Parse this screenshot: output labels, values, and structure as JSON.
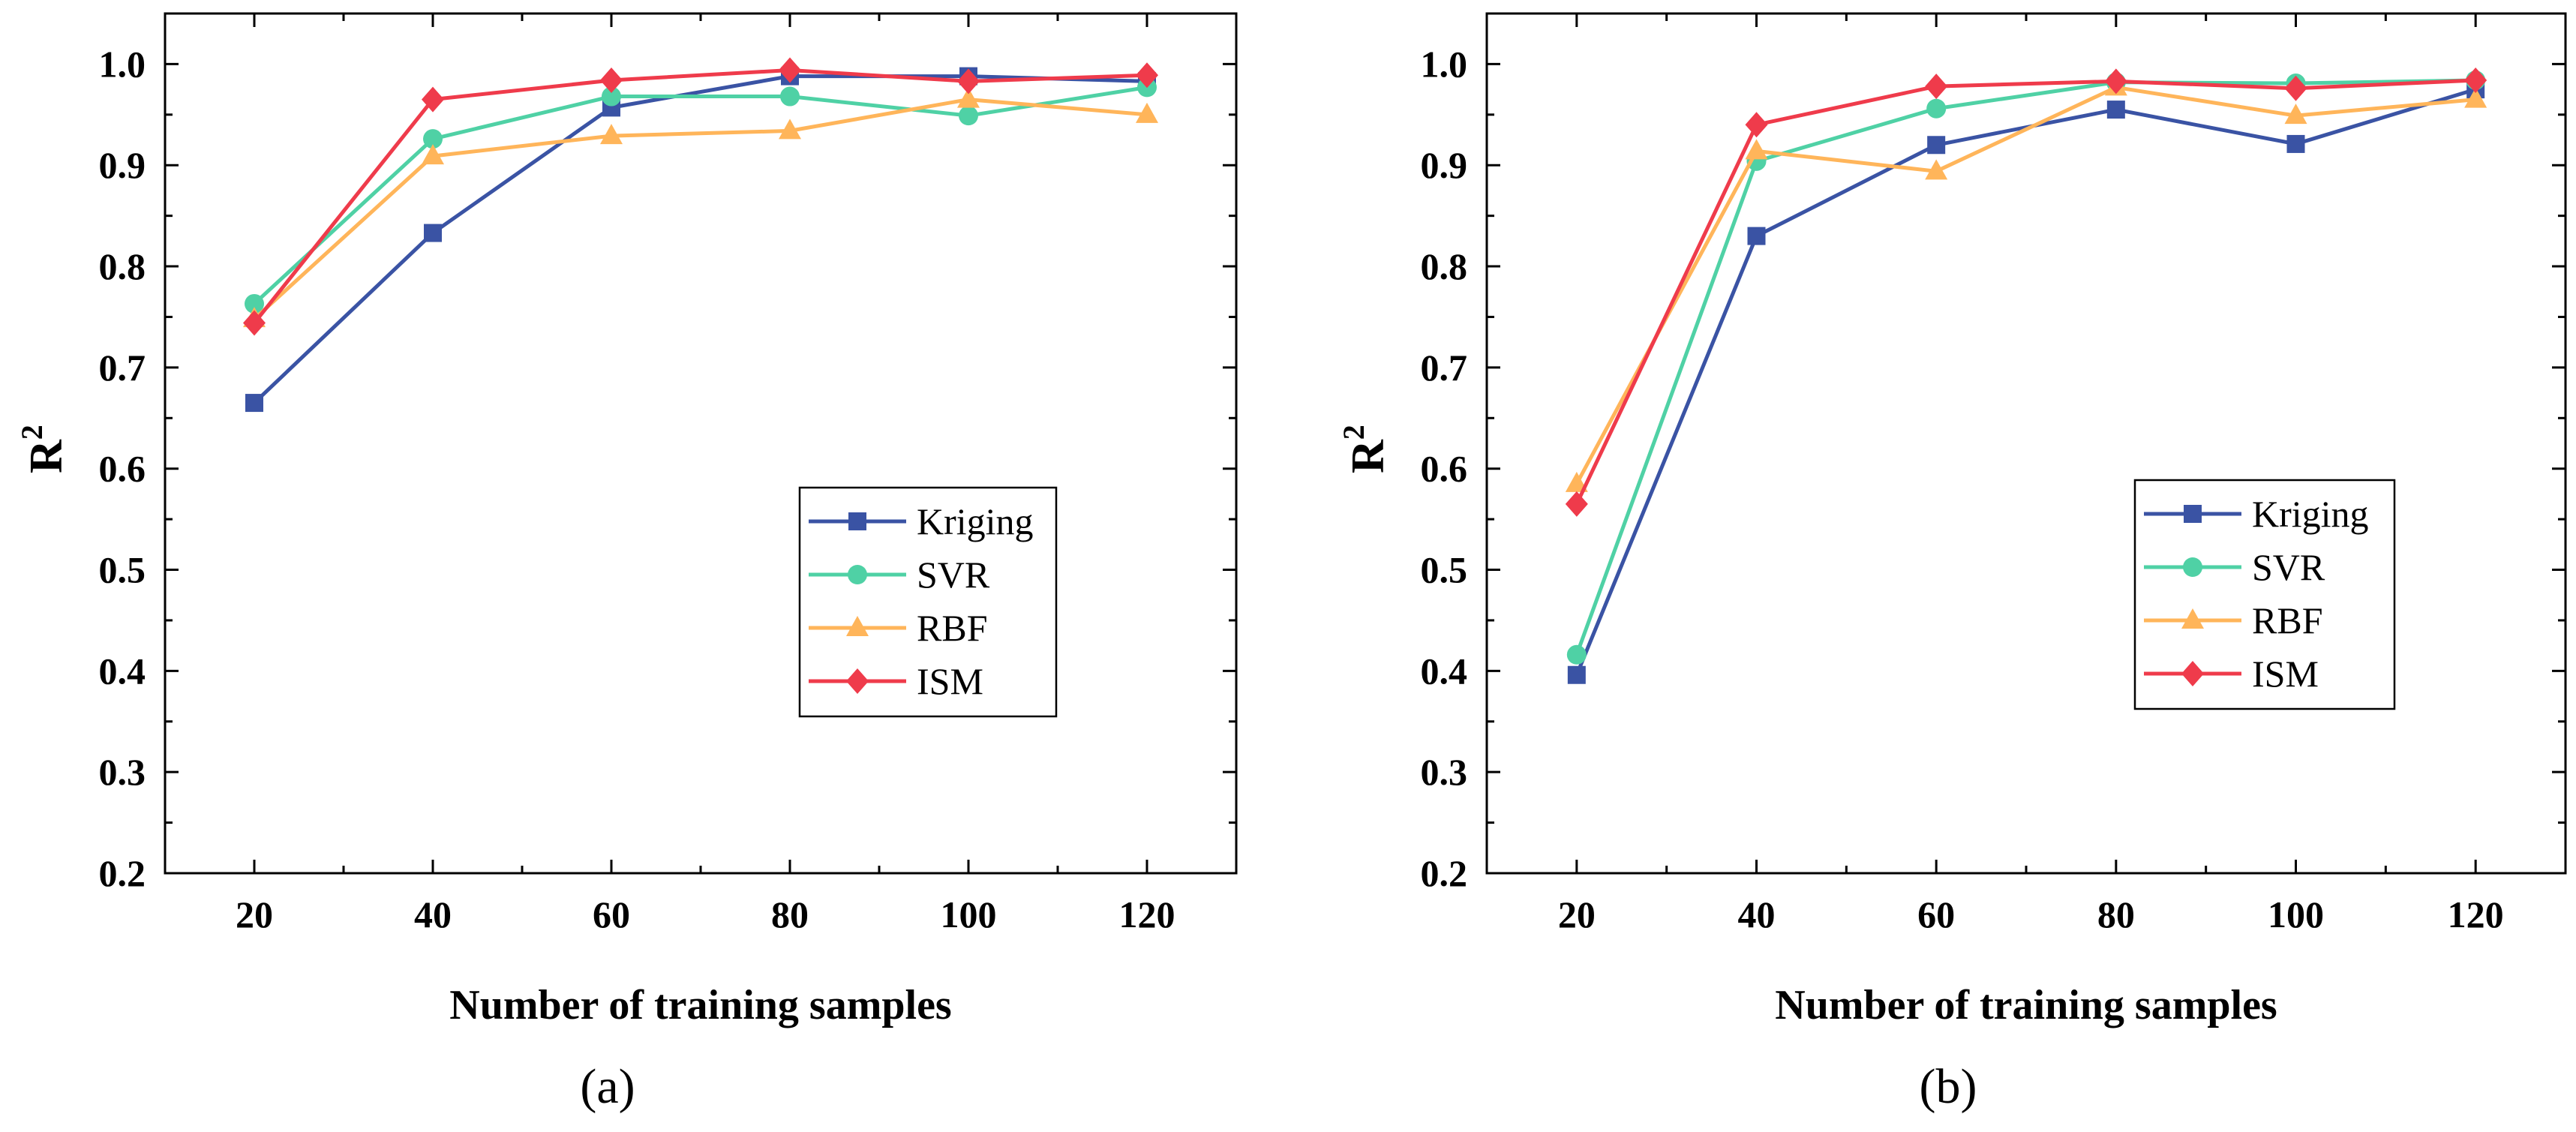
{
  "chart_data": [
    {
      "type": "line",
      "panel_label": "(a)",
      "xlabel": "Number of training samples",
      "ylabel": "R",
      "ylabel_superscript": "2",
      "x": [
        20,
        40,
        60,
        80,
        100,
        120
      ],
      "x_ticks": [
        "20",
        "40",
        "60",
        "80",
        "100",
        "120"
      ],
      "xlim": [
        10,
        130
      ],
      "ylim": [
        0.2,
        1.05
      ],
      "y_ticks": [
        "0.2",
        "0.3",
        "0.4",
        "0.5",
        "0.6",
        "0.7",
        "0.8",
        "0.9",
        "1.0"
      ],
      "grid": false,
      "legend_position": "bottom-right",
      "series": [
        {
          "name": "Kriging",
          "marker": "square",
          "color": "#3a53a4",
          "values": [
            0.665,
            0.833,
            0.957,
            0.988,
            0.988,
            0.983
          ]
        },
        {
          "name": "SVR",
          "marker": "circle",
          "color": "#4fd1a5",
          "values": [
            0.763,
            0.926,
            0.968,
            0.968,
            0.949,
            0.977
          ]
        },
        {
          "name": "RBF",
          "marker": "triangle",
          "color": "#ffb55a",
          "values": [
            0.748,
            0.909,
            0.929,
            0.934,
            0.965,
            0.95
          ]
        },
        {
          "name": "ISM",
          "marker": "diamond",
          "color": "#ef3b4b",
          "values": [
            0.744,
            0.965,
            0.984,
            0.994,
            0.983,
            0.989
          ]
        }
      ]
    },
    {
      "type": "line",
      "panel_label": "(b)",
      "xlabel": "Number of training samples",
      "ylabel": "R",
      "ylabel_superscript": "2",
      "x": [
        20,
        40,
        60,
        80,
        100,
        120
      ],
      "x_ticks": [
        "20",
        "40",
        "60",
        "80",
        "100",
        "120"
      ],
      "xlim": [
        10,
        130
      ],
      "ylim": [
        0.2,
        1.05
      ],
      "y_ticks": [
        "0.2",
        "0.3",
        "0.4",
        "0.5",
        "0.6",
        "0.7",
        "0.8",
        "0.9",
        "1.0"
      ],
      "grid": false,
      "legend_position": "bottom-right",
      "series": [
        {
          "name": "Kriging",
          "marker": "square",
          "color": "#3a53a4",
          "values": [
            0.396,
            0.83,
            0.92,
            0.955,
            0.921,
            0.975
          ]
        },
        {
          "name": "SVR",
          "marker": "circle",
          "color": "#4fd1a5",
          "values": [
            0.416,
            0.904,
            0.956,
            0.982,
            0.981,
            0.984
          ]
        },
        {
          "name": "RBF",
          "marker": "triangle",
          "color": "#ffb55a",
          "values": [
            0.585,
            0.914,
            0.894,
            0.977,
            0.949,
            0.965
          ]
        },
        {
          "name": "ISM",
          "marker": "diamond",
          "color": "#ef3b4b",
          "values": [
            0.565,
            0.94,
            0.978,
            0.983,
            0.976,
            0.984
          ]
        }
      ]
    }
  ]
}
